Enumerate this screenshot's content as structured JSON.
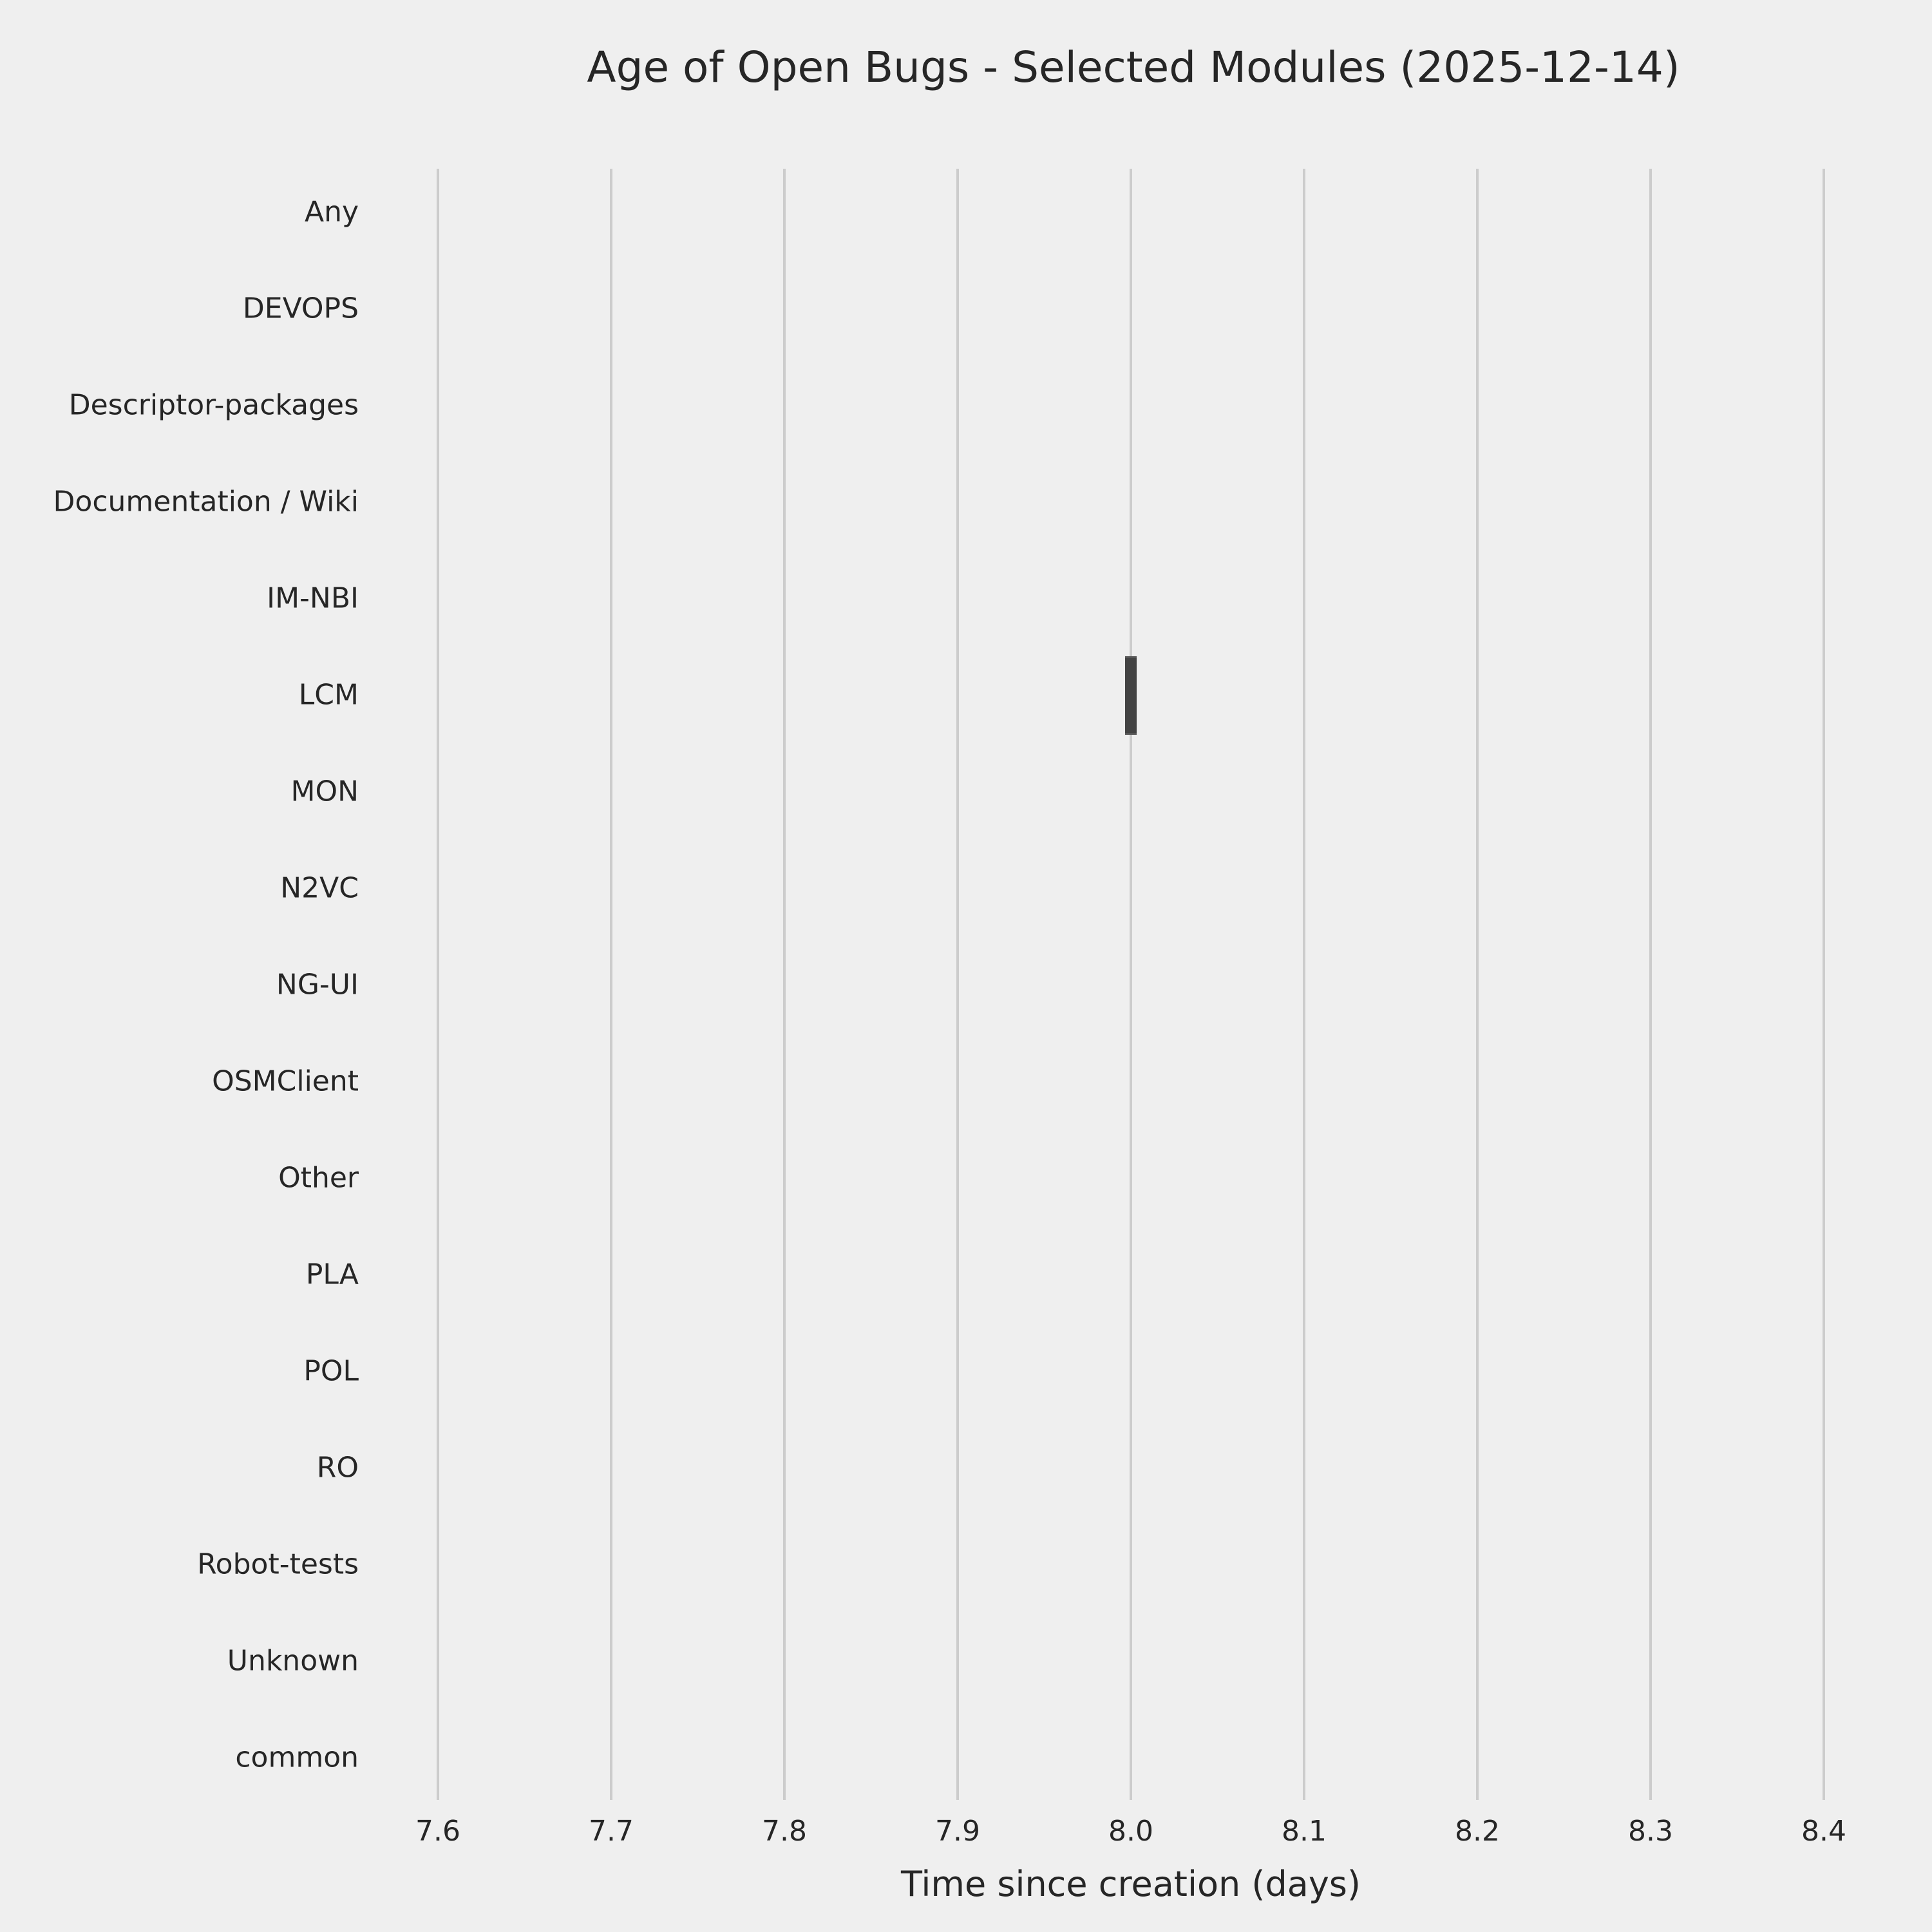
{
  "title": "Age of Open Bugs - Selected Modules (2025-12-14)",
  "chart_data": {
    "type": "boxplot",
    "orientation": "horizontal",
    "title": "Age of Open Bugs - Selected Modules (2025-12-14)",
    "xlabel": "Time since creation (days)",
    "ylabel": "",
    "categories": [
      "Any",
      "DEVOPS",
      "Descriptor-packages",
      "Documentation / Wiki",
      "IM-NBI",
      "LCM",
      "MON",
      "N2VC",
      "NG-UI",
      "OSMClient",
      "Other",
      "PLA",
      "POL",
      "RO",
      "Robot-tests",
      "Unknown",
      "common"
    ],
    "boxes": [
      {
        "category": "LCM",
        "whisker_low": 8.0,
        "q1": 8.0,
        "median": 8.0,
        "q3": 8.0,
        "whisker_high": 8.0
      }
    ],
    "xticks": [
      7.6,
      7.7,
      7.8,
      7.9,
      8.0,
      8.1,
      8.2,
      8.3,
      8.4
    ],
    "xlim": [
      7.55,
      8.45
    ],
    "grid": {
      "vertical": true,
      "horizontal": false
    },
    "legend": null,
    "colors": {
      "background": "#efefef",
      "gridline": "#cccccc",
      "box": "#434343",
      "text": "#262626"
    }
  }
}
